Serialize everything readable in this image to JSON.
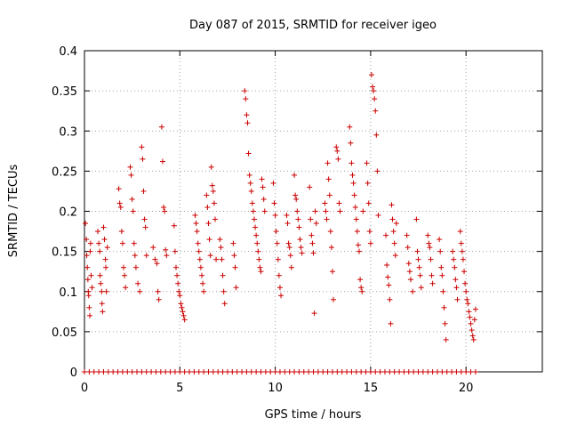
{
  "chart_data": {
    "type": "scatter",
    "title": "Day 087 of 2015, SRMTID for receiver igeo",
    "xlabel": "GPS time / hours",
    "ylabel": "SRMTID / TECUs",
    "xlim": [
      0,
      24
    ],
    "ylim": [
      0,
      0.4
    ],
    "xticks": [
      0,
      5,
      10,
      15,
      20
    ],
    "xtick_labels": [
      "0",
      "5",
      "10",
      "15",
      "20"
    ],
    "yticks": [
      0,
      0.05,
      0.1,
      0.15,
      0.2,
      0.25,
      0.3,
      0.35,
      0.4
    ],
    "ytick_labels": [
      "0",
      "0.05",
      "0.1",
      "0.15",
      "0.2",
      "0.25",
      "0.3",
      "0.35",
      "0.4"
    ],
    "grid": true,
    "marker": "+",
    "series": [
      {
        "name": "SRMTID",
        "color": "#cc0000",
        "points": [
          [
            0.05,
            0.185
          ],
          [
            0.1,
            0.165
          ],
          [
            0.12,
            0.145
          ],
          [
            0.15,
            0.13
          ],
          [
            0.18,
            0.115
          ],
          [
            0.2,
            0.1
          ],
          [
            0.22,
            0.095
          ],
          [
            0.25,
            0.08
          ],
          [
            0.28,
            0.07
          ],
          [
            0.3,
            0.15
          ],
          [
            0.32,
            0.16
          ],
          [
            0.35,
            0.12
          ],
          [
            0.4,
            0.105
          ],
          [
            0.7,
            0.175
          ],
          [
            0.75,
            0.16
          ],
          [
            0.8,
            0.15
          ],
          [
            0.82,
            0.12
          ],
          [
            0.85,
            0.11
          ],
          [
            0.9,
            0.1
          ],
          [
            0.92,
            0.085
          ],
          [
            0.95,
            0.075
          ],
          [
            1.0,
            0.18
          ],
          [
            1.05,
            0.165
          ],
          [
            1.1,
            0.14
          ],
          [
            1.12,
            0.13
          ],
          [
            1.15,
            0.1
          ],
          [
            1.2,
            0.155
          ],
          [
            1.8,
            0.228
          ],
          [
            1.85,
            0.21
          ],
          [
            1.9,
            0.205
          ],
          [
            1.95,
            0.175
          ],
          [
            2.0,
            0.16
          ],
          [
            2.05,
            0.13
          ],
          [
            2.1,
            0.12
          ],
          [
            2.15,
            0.105
          ],
          [
            2.4,
            0.255
          ],
          [
            2.45,
            0.245
          ],
          [
            2.5,
            0.215
          ],
          [
            2.55,
            0.2
          ],
          [
            2.6,
            0.16
          ],
          [
            2.65,
            0.145
          ],
          [
            2.7,
            0.13
          ],
          [
            2.8,
            0.11
          ],
          [
            2.9,
            0.1
          ],
          [
            3.0,
            0.28
          ],
          [
            3.05,
            0.265
          ],
          [
            3.1,
            0.225
          ],
          [
            3.15,
            0.19
          ],
          [
            3.2,
            0.18
          ],
          [
            3.25,
            0.145
          ],
          [
            3.6,
            0.155
          ],
          [
            3.7,
            0.14
          ],
          [
            3.8,
            0.135
          ],
          [
            3.85,
            0.1
          ],
          [
            3.9,
            0.09
          ],
          [
            4.05,
            0.305
          ],
          [
            4.1,
            0.262
          ],
          [
            4.15,
            0.205
          ],
          [
            4.2,
            0.2
          ],
          [
            4.25,
            0.152
          ],
          [
            4.3,
            0.145
          ],
          [
            4.7,
            0.182
          ],
          [
            4.75,
            0.15
          ],
          [
            4.8,
            0.13
          ],
          [
            4.85,
            0.12
          ],
          [
            4.9,
            0.11
          ],
          [
            4.95,
            0.1
          ],
          [
            5.0,
            0.095
          ],
          [
            5.05,
            0.085
          ],
          [
            5.1,
            0.08
          ],
          [
            5.15,
            0.075
          ],
          [
            5.2,
            0.07
          ],
          [
            5.25,
            0.065
          ],
          [
            5.8,
            0.195
          ],
          [
            5.85,
            0.185
          ],
          [
            5.9,
            0.175
          ],
          [
            5.95,
            0.16
          ],
          [
            6.0,
            0.15
          ],
          [
            6.05,
            0.14
          ],
          [
            6.1,
            0.13
          ],
          [
            6.15,
            0.12
          ],
          [
            6.2,
            0.11
          ],
          [
            6.25,
            0.1
          ],
          [
            6.4,
            0.22
          ],
          [
            6.45,
            0.205
          ],
          [
            6.5,
            0.185
          ],
          [
            6.55,
            0.165
          ],
          [
            6.6,
            0.145
          ],
          [
            6.65,
            0.255
          ],
          [
            6.7,
            0.232
          ],
          [
            6.75,
            0.225
          ],
          [
            6.8,
            0.21
          ],
          [
            6.85,
            0.19
          ],
          [
            6.9,
            0.14
          ],
          [
            7.1,
            0.165
          ],
          [
            7.15,
            0.155
          ],
          [
            7.2,
            0.14
          ],
          [
            7.25,
            0.12
          ],
          [
            7.3,
            0.1
          ],
          [
            7.35,
            0.085
          ],
          [
            7.8,
            0.16
          ],
          [
            7.85,
            0.145
          ],
          [
            7.9,
            0.13
          ],
          [
            7.95,
            0.105
          ],
          [
            8.4,
            0.35
          ],
          [
            8.45,
            0.34
          ],
          [
            8.5,
            0.32
          ],
          [
            8.55,
            0.31
          ],
          [
            8.6,
            0.272
          ],
          [
            8.65,
            0.245
          ],
          [
            8.7,
            0.235
          ],
          [
            8.75,
            0.225
          ],
          [
            8.8,
            0.21
          ],
          [
            8.85,
            0.2
          ],
          [
            8.9,
            0.19
          ],
          [
            8.95,
            0.18
          ],
          [
            9.0,
            0.17
          ],
          [
            9.05,
            0.16
          ],
          [
            9.1,
            0.15
          ],
          [
            9.15,
            0.14
          ],
          [
            9.2,
            0.13
          ],
          [
            9.25,
            0.125
          ],
          [
            9.3,
            0.24
          ],
          [
            9.35,
            0.23
          ],
          [
            9.4,
            0.215
          ],
          [
            9.45,
            0.2
          ],
          [
            9.9,
            0.235
          ],
          [
            9.95,
            0.21
          ],
          [
            10.0,
            0.195
          ],
          [
            10.05,
            0.175
          ],
          [
            10.1,
            0.16
          ],
          [
            10.15,
            0.14
          ],
          [
            10.2,
            0.12
          ],
          [
            10.25,
            0.105
          ],
          [
            10.3,
            0.095
          ],
          [
            10.6,
            0.195
          ],
          [
            10.65,
            0.185
          ],
          [
            10.7,
            0.16
          ],
          [
            10.75,
            0.155
          ],
          [
            10.8,
            0.145
          ],
          [
            10.85,
            0.13
          ],
          [
            11.0,
            0.245
          ],
          [
            11.05,
            0.22
          ],
          [
            11.1,
            0.215
          ],
          [
            11.15,
            0.2
          ],
          [
            11.2,
            0.19
          ],
          [
            11.25,
            0.18
          ],
          [
            11.3,
            0.165
          ],
          [
            11.35,
            0.155
          ],
          [
            11.4,
            0.148
          ],
          [
            11.8,
            0.23
          ],
          [
            11.85,
            0.19
          ],
          [
            11.9,
            0.17
          ],
          [
            11.95,
            0.16
          ],
          [
            12.0,
            0.148
          ],
          [
            12.05,
            0.073
          ],
          [
            12.1,
            0.2
          ],
          [
            12.15,
            0.185
          ],
          [
            12.6,
            0.21
          ],
          [
            12.65,
            0.2
          ],
          [
            12.7,
            0.19
          ],
          [
            12.75,
            0.26
          ],
          [
            12.8,
            0.24
          ],
          [
            12.85,
            0.22
          ],
          [
            12.9,
            0.175
          ],
          [
            12.95,
            0.155
          ],
          [
            13.0,
            0.125
          ],
          [
            13.05,
            0.09
          ],
          [
            13.2,
            0.28
          ],
          [
            13.25,
            0.275
          ],
          [
            13.3,
            0.265
          ],
          [
            13.35,
            0.21
          ],
          [
            13.4,
            0.2
          ],
          [
            13.9,
            0.305
          ],
          [
            13.95,
            0.285
          ],
          [
            14.0,
            0.26
          ],
          [
            14.05,
            0.245
          ],
          [
            14.1,
            0.235
          ],
          [
            14.15,
            0.22
          ],
          [
            14.2,
            0.205
          ],
          [
            14.25,
            0.19
          ],
          [
            14.3,
            0.175
          ],
          [
            14.35,
            0.158
          ],
          [
            14.4,
            0.15
          ],
          [
            14.45,
            0.115
          ],
          [
            14.5,
            0.105
          ],
          [
            14.55,
            0.1
          ],
          [
            14.6,
            0.2
          ],
          [
            14.8,
            0.26
          ],
          [
            14.85,
            0.235
          ],
          [
            14.9,
            0.21
          ],
          [
            14.95,
            0.175
          ],
          [
            15.0,
            0.16
          ],
          [
            15.05,
            0.37
          ],
          [
            15.1,
            0.355
          ],
          [
            15.15,
            0.35
          ],
          [
            15.2,
            0.34
          ],
          [
            15.25,
            0.325
          ],
          [
            15.3,
            0.295
          ],
          [
            15.35,
            0.25
          ],
          [
            15.4,
            0.195
          ],
          [
            15.8,
            0.17
          ],
          [
            15.85,
            0.133
          ],
          [
            15.9,
            0.118
          ],
          [
            15.95,
            0.108
          ],
          [
            16.0,
            0.09
          ],
          [
            16.05,
            0.06
          ],
          [
            16.1,
            0.208
          ],
          [
            16.15,
            0.19
          ],
          [
            16.2,
            0.175
          ],
          [
            16.25,
            0.16
          ],
          [
            16.3,
            0.145
          ],
          [
            16.35,
            0.185
          ],
          [
            16.9,
            0.17
          ],
          [
            16.95,
            0.155
          ],
          [
            17.0,
            0.135
          ],
          [
            17.05,
            0.125
          ],
          [
            17.1,
            0.115
          ],
          [
            17.2,
            0.1
          ],
          [
            17.4,
            0.19
          ],
          [
            17.45,
            0.15
          ],
          [
            17.5,
            0.14
          ],
          [
            17.55,
            0.13
          ],
          [
            17.6,
            0.12
          ],
          [
            17.65,
            0.105
          ],
          [
            18.0,
            0.17
          ],
          [
            18.05,
            0.16
          ],
          [
            18.1,
            0.155
          ],
          [
            18.15,
            0.14
          ],
          [
            18.2,
            0.12
          ],
          [
            18.25,
            0.11
          ],
          [
            18.6,
            0.165
          ],
          [
            18.65,
            0.15
          ],
          [
            18.7,
            0.13
          ],
          [
            18.75,
            0.12
          ],
          [
            18.8,
            0.1
          ],
          [
            18.85,
            0.08
          ],
          [
            18.9,
            0.06
          ],
          [
            18.95,
            0.04
          ],
          [
            19.3,
            0.15
          ],
          [
            19.35,
            0.14
          ],
          [
            19.4,
            0.13
          ],
          [
            19.45,
            0.115
          ],
          [
            19.5,
            0.105
          ],
          [
            19.55,
            0.09
          ],
          [
            19.7,
            0.175
          ],
          [
            19.75,
            0.16
          ],
          [
            19.8,
            0.15
          ],
          [
            19.85,
            0.14
          ],
          [
            19.9,
            0.125
          ],
          [
            19.95,
            0.11
          ],
          [
            20.0,
            0.1
          ],
          [
            20.05,
            0.09
          ],
          [
            20.1,
            0.085
          ],
          [
            20.15,
            0.075
          ],
          [
            20.2,
            0.068
          ],
          [
            20.25,
            0.06
          ],
          [
            20.3,
            0.052
          ],
          [
            20.35,
            0.045
          ],
          [
            20.4,
            0.04
          ],
          [
            20.45,
            0.065
          ],
          [
            20.5,
            0.078
          ]
        ],
        "zero_times": [
          0.0,
          0.25,
          0.5,
          0.75,
          1.0,
          1.25,
          1.5,
          1.75,
          2.0,
          2.25,
          2.5,
          2.75,
          3.0,
          3.25,
          3.5,
          3.75,
          4.0,
          4.25,
          4.5,
          4.75,
          5.0,
          5.25,
          5.5,
          5.75,
          6.0,
          6.25,
          6.5,
          6.75,
          7.0,
          7.25,
          7.5,
          7.75,
          8.0,
          8.25,
          8.5,
          8.75,
          9.0,
          9.25,
          9.5,
          9.75,
          10.0,
          10.25,
          10.5,
          10.75,
          11.0,
          11.25,
          11.5,
          11.75,
          12.0,
          12.25,
          12.5,
          12.75,
          13.0,
          13.25,
          13.5,
          13.75,
          14.0,
          14.25,
          14.5,
          14.75,
          15.0,
          15.25,
          15.5,
          15.75,
          16.0,
          16.25,
          16.5,
          16.75,
          17.0,
          17.25,
          17.5,
          17.75,
          18.0,
          18.25,
          18.5,
          18.75,
          19.0,
          19.25,
          19.5,
          19.75,
          20.0,
          20.25,
          20.5
        ]
      }
    ]
  }
}
